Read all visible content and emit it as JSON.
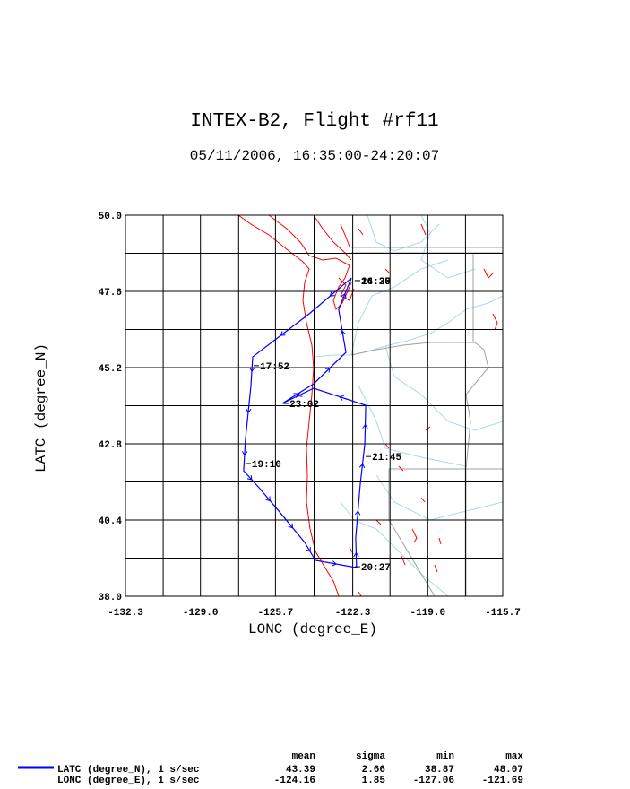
{
  "chart_data": {
    "type": "line",
    "title": "INTEX-B2, Flight #rf11",
    "subtitle": "05/11/2006, 16:35:00-24:20:07",
    "x_label": "LONC (degree_E)",
    "y_label": "LATC (degree_N)",
    "xlim": [
      -132.3,
      -115.7
    ],
    "ylim": [
      38.0,
      50.0
    ],
    "xticks": [
      -132.3,
      {
        "value": -129.0,
        "label": "-129.0"
      },
      -125.7,
      -122.3,
      {
        "value": -119.0,
        "label": "-119.0"
      },
      -115.7
    ],
    "yticks": [
      {
        "value": 38.0,
        "label": "38.0"
      },
      40.4,
      42.8,
      45.2,
      47.6,
      {
        "value": 50.0,
        "label": "50.0"
      }
    ],
    "xgrid": [
      -130.64,
      -127.32,
      -124.0,
      -120.66,
      -117.34
    ],
    "ygrid": [
      39.2,
      41.6,
      44.0,
      46.4,
      48.8
    ],
    "grid": true,
    "color": "#0000ff",
    "x": [
      -122.36,
      -124.22,
      -126.7,
      -126.78,
      -127.02,
      -127.1,
      -126.39,
      -125.48,
      -124.41,
      -123.94,
      -122.13,
      -122.17,
      -121.97,
      -121.77,
      -121.73,
      -124.02,
      -125.4,
      -124.02,
      -122.6,
      -122.92,
      -122.36
    ],
    "values": [
      48.02,
      46.89,
      45.54,
      44.63,
      42.94,
      41.95,
      41.39,
      40.62,
      39.69,
      39.13,
      38.9,
      39.83,
      41.53,
      42.8,
      44.01,
      44.55,
      44.07,
      44.69,
      45.68,
      47.03,
      48.02
    ],
    "annotations": [
      {
        "text": "16:35",
        "x": -122.21,
        "y": 47.94
      },
      {
        "text": "24:20",
        "x": -122.21,
        "y": 47.94
      },
      {
        "text": "17:52",
        "x": -126.66,
        "y": 45.26
      },
      {
        "text": "19:10",
        "x": -127.02,
        "y": 42.18
      },
      {
        "text": "20:27",
        "x": -122.21,
        "y": 38.93
      },
      {
        "text": "21:45",
        "x": -121.73,
        "y": 42.4
      },
      {
        "text": "23:02",
        "x": -125.36,
        "y": 44.07
      }
    ],
    "stats": {
      "columns": [
        "mean",
        "sigma",
        "min",
        "max"
      ],
      "rows": [
        {
          "label": "LATC (degree_N), 1 s/sec",
          "values": [
            43.39,
            2.66,
            38.87,
            48.07
          ]
        },
        {
          "label": "LONC (degree_E), 1 s/sec",
          "values": [
            -124.16,
            1.85,
            -127.06,
            -121.69
          ]
        }
      ]
    }
  }
}
